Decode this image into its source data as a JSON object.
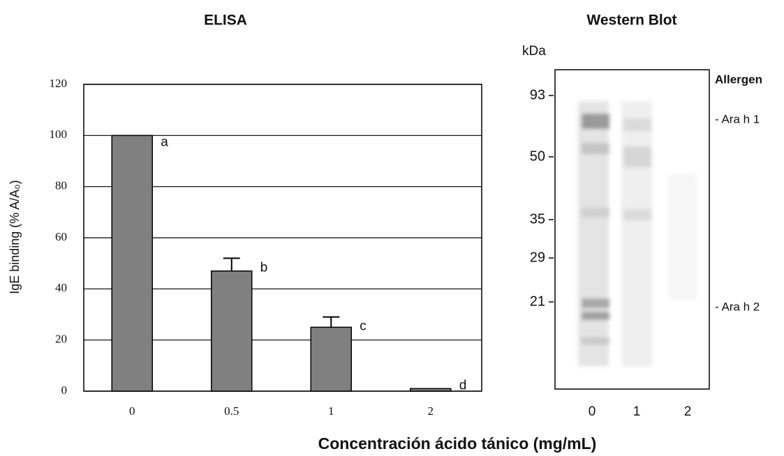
{
  "xlabel": "Concentración ácido tánico (mg/mL)",
  "chart_data": [
    {
      "type": "bar",
      "title": "ELISA",
      "ylabel": "IgE binding (% A/A₀)",
      "categories": [
        "0",
        "0.5",
        "1",
        "2"
      ],
      "values": [
        100,
        47,
        25,
        1
      ],
      "errors": [
        null,
        5,
        4,
        null
      ],
      "annotations": [
        "a",
        "b",
        "c",
        "d"
      ],
      "color": "#808080",
      "ylim": [
        0,
        120
      ],
      "yticks": [
        0,
        20,
        40,
        60,
        80,
        100,
        120
      ],
      "grid": true
    },
    {
      "type": "blot",
      "title": "Western Blot",
      "ylabel": "kDa",
      "markers": [
        93,
        50,
        35,
        29,
        21
      ],
      "lanes": [
        "0",
        "1",
        "2"
      ],
      "legend_title": "Allergen",
      "annotations": [
        "- Ara h 1",
        "- Ara h 2"
      ]
    }
  ]
}
